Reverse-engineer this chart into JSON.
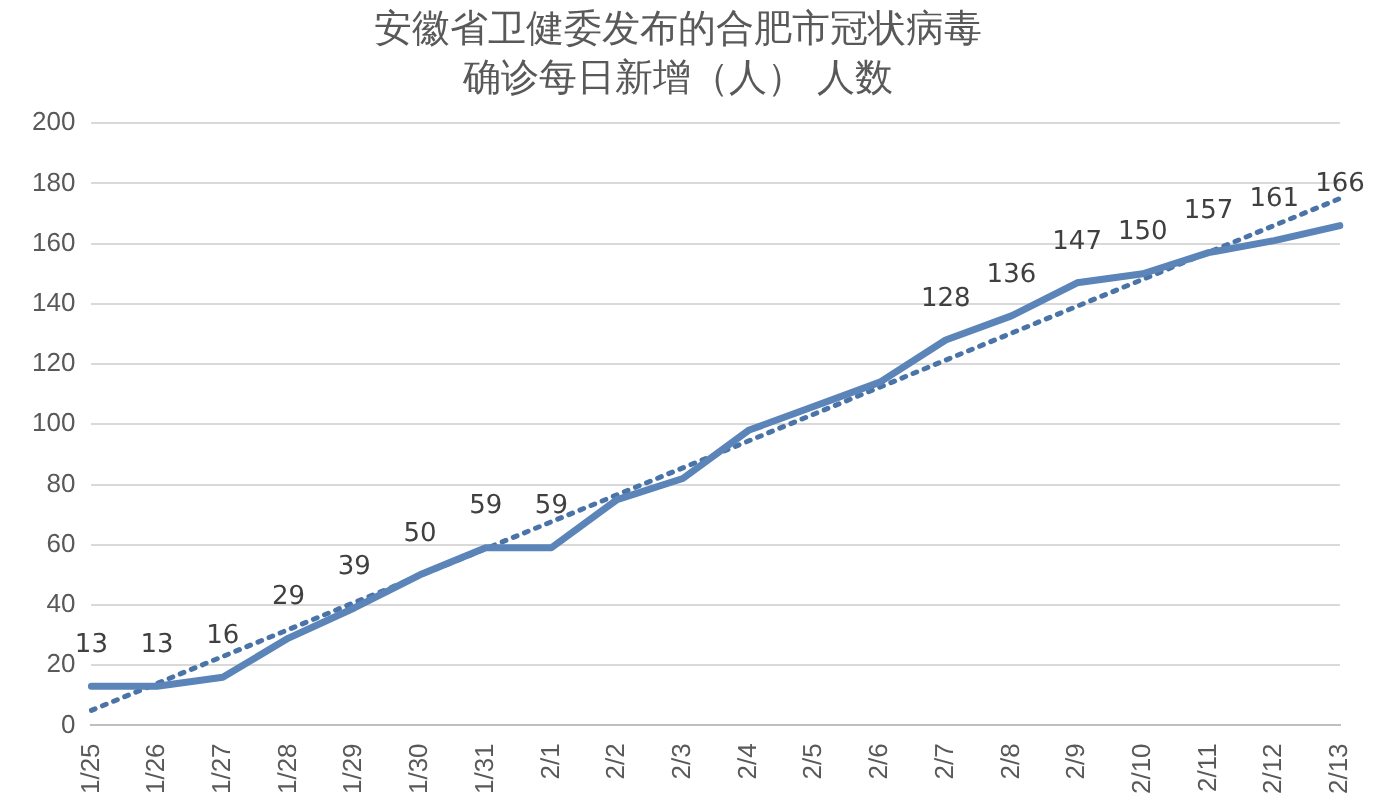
{
  "chart_data": {
    "type": "line",
    "title": "安徽省卫健委发布的合肥市冠状病毒",
    "subtitle": "确诊每日新增（人） 人数",
    "categories": [
      "1/25",
      "1/26",
      "1/27",
      "1/28",
      "1/29",
      "1/30",
      "1/31",
      "2/1",
      "2/2",
      "2/3",
      "2/4",
      "2/5",
      "2/6",
      "2/7",
      "2/8",
      "2/9",
      "2/10",
      "2/11",
      "2/12",
      "2/13"
    ],
    "series": [
      {
        "color": "#5b84b8",
        "values": [
          13,
          13,
          16,
          29,
          39,
          50,
          59,
          59,
          75,
          82,
          98,
          106,
          114,
          128,
          136,
          147,
          150,
          157,
          161,
          166
        ],
        "value_labels": [
          "13",
          "13",
          "16",
          "29",
          "39",
          "50",
          "59",
          "59",
          null,
          null,
          null,
          null,
          null,
          "128",
          "136",
          "147",
          "150",
          "157",
          "161",
          "166"
        ]
      },
      {
        "type": "line",
        "color": "#4a74a8",
        "line_style": "dotted",
        "values": [
          5,
          null,
          null,
          null,
          null,
          null,
          null,
          null,
          null,
          null,
          null,
          null,
          null,
          null,
          null,
          null,
          null,
          null,
          null,
          175
        ]
      }
    ],
    "ylim": [
      0,
      200
    ],
    "yticks": [
      0,
      20,
      40,
      60,
      80,
      100,
      120,
      140,
      160,
      180,
      200
    ],
    "grid": "y",
    "legend": false,
    "marker": "none",
    "line_style": "solid"
  }
}
